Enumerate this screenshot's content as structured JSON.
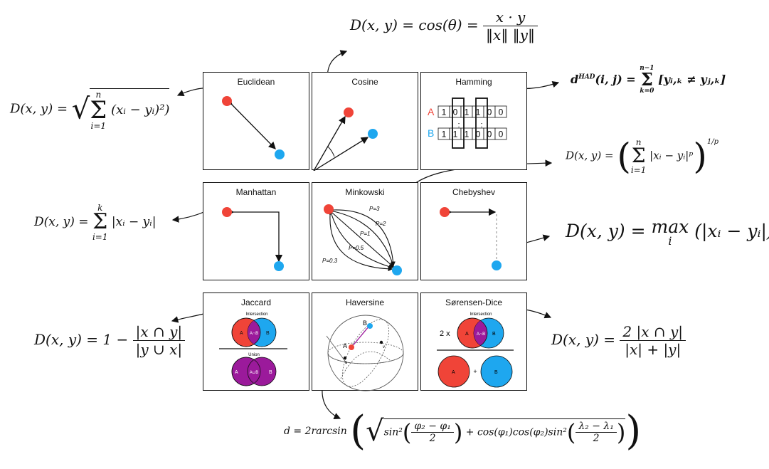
{
  "colors": {
    "red": "#f04438",
    "blue": "#1ea7ef",
    "purple": "#9b1a9b",
    "line": "#111111"
  },
  "panels": {
    "euclidean": {
      "title": "Euclidean"
    },
    "cosine": {
      "title": "Cosine"
    },
    "hamming": {
      "title": "Hamming",
      "row_a_label": "A",
      "row_b_label": "B",
      "row_a_bits": [
        "1",
        "0",
        "1",
        "1",
        "0",
        "0"
      ],
      "row_b_bits": [
        "1",
        "1",
        "1",
        "0",
        "0",
        "0"
      ]
    },
    "manhattan": {
      "title": "Manhattan"
    },
    "minkowski": {
      "title": "Minkowski",
      "labels": [
        "P=3",
        "P=2",
        "P=1",
        "P=0.5",
        "P=0.3"
      ]
    },
    "chebyshev": {
      "title": "Chebyshev"
    },
    "jaccard": {
      "title": "Jaccard",
      "intersection_label": "Intersection",
      "union_label": "Union",
      "set_a": "A",
      "set_b": "B",
      "intersect_sym": "A∩B",
      "union_sym": "A∪B"
    },
    "haversine": {
      "title": "Haversine",
      "point_a": "A",
      "point_b": "B",
      "label_u": "u",
      "label_v": "v"
    },
    "sorensen": {
      "title": "Sørensen-Dice",
      "intersection_label": "Intersection",
      "two_x": "2 x",
      "set_a": "A",
      "set_b": "B",
      "intersect_sym": "A∩B",
      "plus": "+"
    }
  },
  "formulas": {
    "cosine": {
      "lhs": "D(x, y) = cos(θ) =",
      "num": "x · y",
      "den": "‖x‖ ‖y‖"
    },
    "euclidean": {
      "lhs": "D(x, y) =",
      "upper": "n",
      "lower": "i=1",
      "body": "(xᵢ − yᵢ)²)"
    },
    "hamming": {
      "lhs": "d",
      "sup": "HAD",
      "args": "(i, j) =",
      "upper": "n−1",
      "lower": "k=0",
      "body": "[yᵢ,ₖ ≠ yⱼ,ₖ]"
    },
    "minkowski": {
      "lhs": "D(x, y) =",
      "upper": "n",
      "lower": "i=1",
      "body": "|xᵢ − yᵢ|ᵖ",
      "exp": "1/p"
    },
    "manhattan": {
      "lhs": "D(x, y) =",
      "upper": "k",
      "lower": "i=1",
      "body": "|xᵢ − yᵢ|"
    },
    "chebyshev": {
      "lhs": "D(x, y) =",
      "op": "max",
      "sub": "i",
      "body": "(|xᵢ − yᵢ|)"
    },
    "jaccard": {
      "lhs": "D(x, y) = 1 −",
      "num": "|x ∩ y|",
      "den": "|y ∪ x|"
    },
    "sorensen": {
      "lhs": "D(x, y) =",
      "num": "2 |x ∩ y|",
      "den": "|x| + |y|"
    },
    "haversine": {
      "lhs": "d = 2rarcsin",
      "t1": "sin²",
      "t1num": "φ₂ − φ₁",
      "t1den": "2",
      "mid": "+ cos(φ₁)cos(φ₂)sin²",
      "t2num": "λ₂ − λ₁",
      "t2den": "2"
    }
  }
}
